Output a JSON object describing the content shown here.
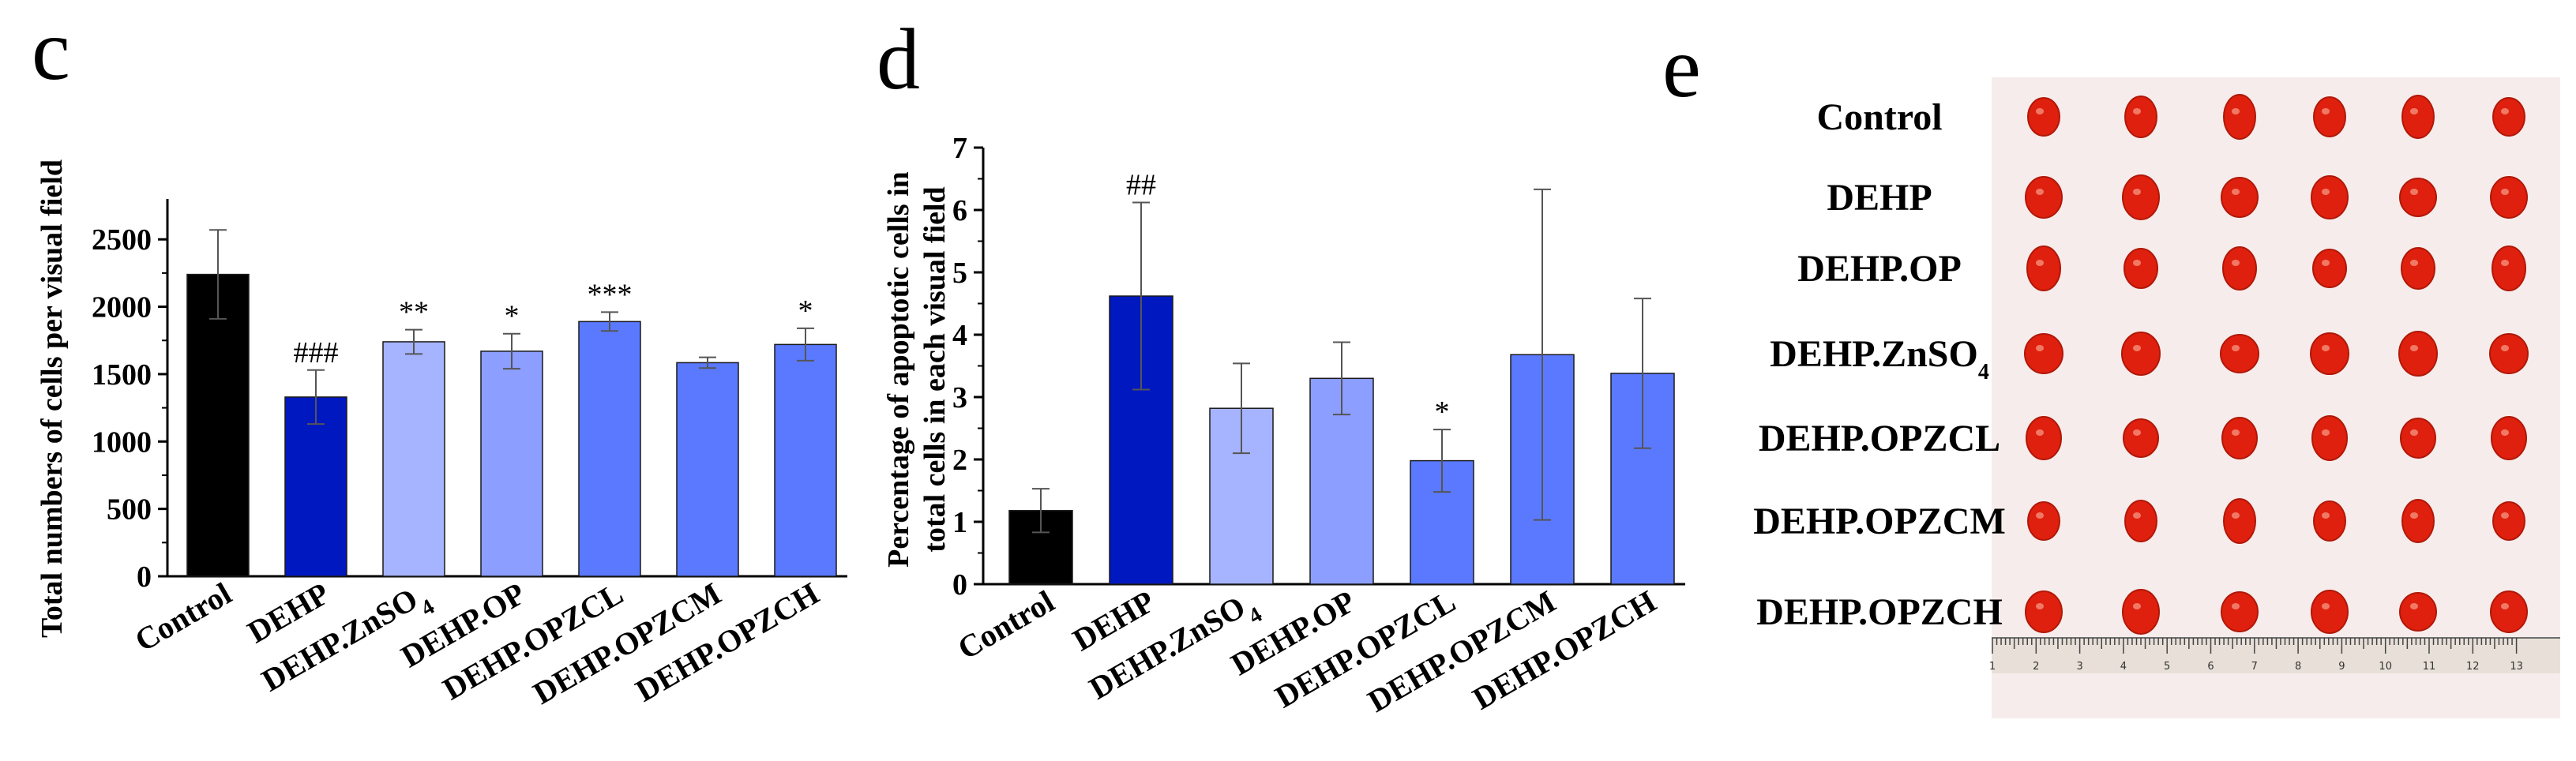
{
  "panels": {
    "c": "c",
    "d": "d",
    "e": "e"
  },
  "colors": {
    "Control": "#000000",
    "DEHP": "#0018c0",
    "DEHP.ZnSO4": "#a6b4ff",
    "DEHP.OP": "#8c9eff",
    "DEHP.OPZCL": "#5a79ff",
    "DEHP.OPZCM": "#5a79ff",
    "DEHP.OPZCH": "#5a79ff",
    "photo_bg": "#f7ecec",
    "organ": "#e0200e",
    "ruler": "#e8e0d8"
  },
  "chart_data": [
    {
      "type": "bar",
      "panel": "c",
      "ylabel": "Total numbers of cells per visual field",
      "ylim": [
        0,
        2800
      ],
      "yticks": [
        "0",
        "500",
        "1000",
        "1500",
        "2000",
        "2500"
      ],
      "categories": [
        "Control",
        "DEHP",
        "DEHP.ZnSO4",
        "DEHP.OP",
        "DEHP.OPZCL",
        "DEHP.OPZCM",
        "DEHP.OPZCH"
      ],
      "values": [
        2240,
        1330,
        1740,
        1670,
        1890,
        1585,
        1720
      ],
      "errors": [
        330,
        200,
        90,
        130,
        70,
        40,
        120
      ],
      "annotations": [
        "",
        "###",
        "**",
        "*",
        "***",
        "",
        "*"
      ]
    },
    {
      "type": "bar",
      "panel": "d",
      "ylabel_lines": [
        "Percentage of apoptotic cells in",
        "total cells in each visual field"
      ],
      "ylim": [
        0,
        7
      ],
      "yticks": [
        "0",
        "1",
        "2",
        "3",
        "4",
        "5",
        "6",
        "7"
      ],
      "categories": [
        "Control",
        "DEHP",
        "DEHP.ZnSO4",
        "DEHP.OP",
        "DEHP.OPZCL",
        "DEHP.OPZCM",
        "DEHP.OPZCH"
      ],
      "values": [
        1.18,
        4.62,
        2.82,
        3.3,
        1.98,
        3.68,
        3.38
      ],
      "errors": [
        0.35,
        1.5,
        0.72,
        0.58,
        0.5,
        2.65,
        1.2
      ],
      "annotations": [
        "",
        "##",
        "",
        "",
        "*",
        "",
        ""
      ]
    }
  ],
  "photo": {
    "rows": [
      "Control",
      "DEHP",
      "DEHP.OP",
      "DEHP.ZnSO4",
      "DEHP.OPZCL",
      "DEHP.OPZCM",
      "DEHP.OPZCH"
    ],
    "ruler_numbers": [
      "1",
      "2",
      "3",
      "4",
      "5",
      "6",
      "7",
      "8",
      "9",
      "10",
      "11",
      "12",
      "13"
    ]
  }
}
